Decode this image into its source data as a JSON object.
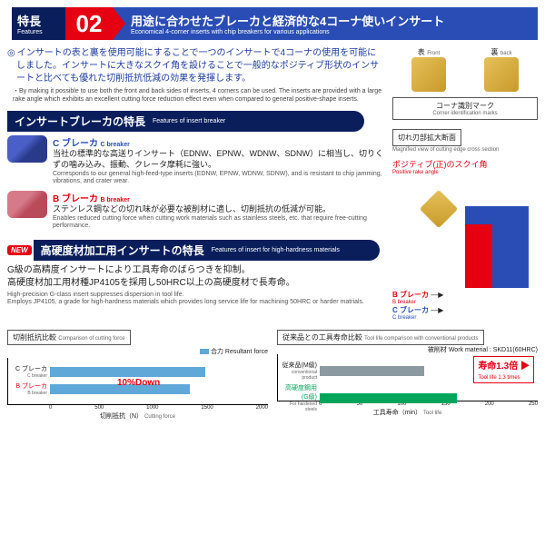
{
  "header": {
    "features_jp": "特長",
    "features_en": "Features",
    "num": "02",
    "title_jp": "用途に合わせたブレーカと経済的な4コーナ使いインサート",
    "title_en": "Economical 4-corner inserts with chip breakers for various applications"
  },
  "intro": {
    "jp": "インサートの表と裏を使用可能にすることで一つのインサートで4コーナの使用を可能にしました。インサートに大きなスクイ角を設けることで一般的なポジティブ形状のインサートと比べても優れた切削抵抗低減の効果を発揮します。",
    "en": "・By making it possible to use both the front and back sides of inserts, 4 corners can be used. The inserts are provided with a large rake angle which exhibits an excellent cutting force reduction effect even when compared to general positive-shape inserts."
  },
  "sub1": {
    "jp": "インサートブレーカの特長",
    "en": "Features of insert breaker"
  },
  "c": {
    "name_jp": "C ブレーカ",
    "name_en": "C breaker",
    "desc_jp": "当社の標準的な高送りインサート（EDNW、EPNW、WDNW、SDNW）に相当し、切りくずの噛み込み、振動、クレータ摩耗に強い。",
    "desc_en": "Corresponds to our general high-feed-type inserts (EDNW, EPNW, WDNW, SDNW), and is resistant to chip jamming, vibrations, and crater wear."
  },
  "b": {
    "name_jp": "B ブレーカ",
    "name_en": "B breaker",
    "desc_jp": "ステンレス鋼などの切れ味が必要な被削材に適し、切削抵抗の低減が可能。",
    "desc_en": "Enables reduced cutting force when cutting work materials such as stainless steels, etc. that require free-cutting performance."
  },
  "sub2": {
    "new": "NEW",
    "jp": "高硬度材加工用インサートの特長",
    "en": "Features of insert for high-hardness materials"
  },
  "hard": {
    "jp1": "G級の高精度インサートにより工具寿命のばらつきを抑制。",
    "jp2": "高硬度材加工用材種JP4105を採用し50HRC以上の高硬度材で長寿命。",
    "en": "High-precision G-class insert suppresses dispersion in tool life.\nEmploys JP4105, a grade for high-hardness materials which provides long service life for machining 50HRC or harder matrials."
  },
  "thumbs": {
    "front_jp": "表",
    "front_en": "Front",
    "back_jp": "裏",
    "back_en": "back",
    "corner_jp": "コーナ識別マーク",
    "corner_en": "Corner identification marks"
  },
  "cross": {
    "jp": "切れ刃部拡大断面",
    "en": "Magnified view of cutting edge cross section",
    "rake_jp": "ポジティブ(正)のスクイ角",
    "rake_en": "Positive rake angle"
  },
  "chart1": {
    "title_jp": "切削抵抗比較",
    "title_en": "Comparison of cutting force",
    "legend_jp": "合力",
    "legend_en": "Resultant force",
    "legend_color": "#5fa8d8",
    "c_lbl_jp": "C ブレーカ",
    "c_lbl_en": "C breaker",
    "b_lbl_jp": "B ブレーカ",
    "b_lbl_en": "B breaker",
    "c_val": 1900,
    "b_val": 1710,
    "max": 2000,
    "callout": "10%Down",
    "axis_jp": "切削抵抗（N）",
    "axis_en": "Cutting force",
    "ticks": [
      "0",
      "500",
      "1000",
      "1500",
      "2000"
    ]
  },
  "chart2": {
    "title_jp": "従来品との工具寿命比較",
    "title_en": "Tool life comparison with conventional products",
    "mat_jp": "被削材",
    "mat_en": "Work material : ",
    "mat_val": "SKD11(60HRC)",
    "r1_jp": "従来品(M級)",
    "r1_en": "conventional product",
    "r2_jp": "高硬度鋼用(G級)",
    "r2_en": "For hardened steels",
    "r1_val": 160,
    "r2_val": 210,
    "max": 250,
    "r1_color": "#8a9aa0",
    "r2_color": "#00a55a",
    "callout_jp": "寿命1.3倍",
    "callout_en": "Tool life 1.3 times",
    "axis_jp": "工具寿命（min）",
    "axis_en": "Tool life",
    "ticks": [
      "0",
      "50",
      "100",
      "150",
      "200",
      "250"
    ]
  }
}
